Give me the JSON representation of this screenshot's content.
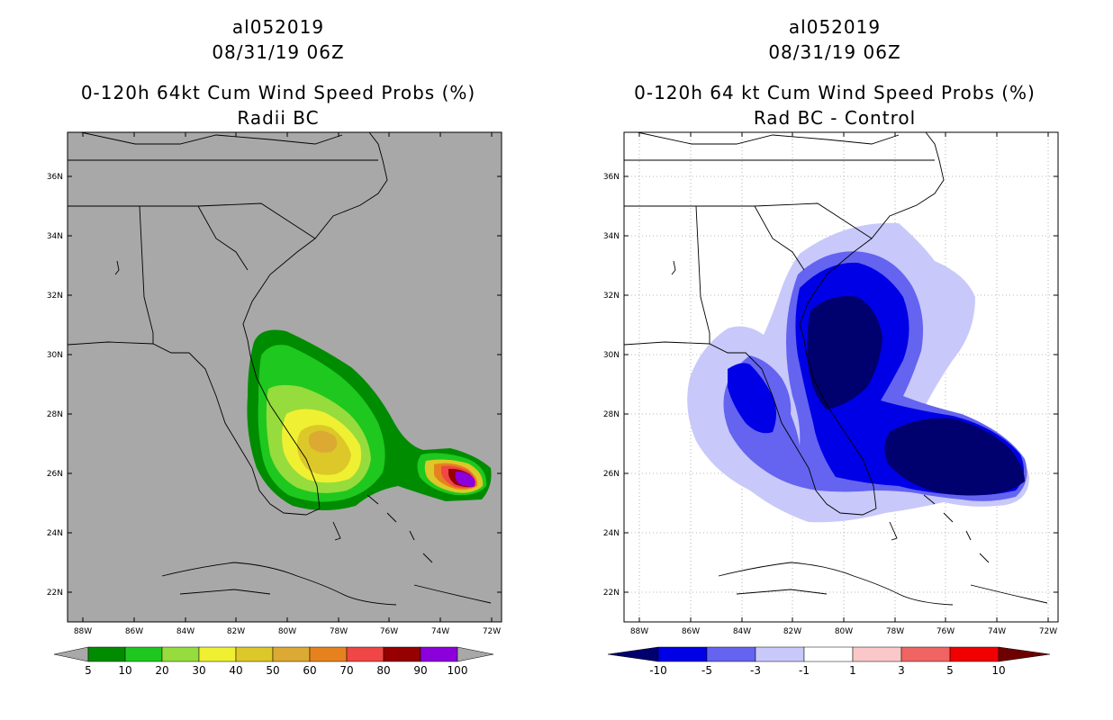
{
  "left": {
    "storm_id": "al052019",
    "datetime": "08/31/19 06Z",
    "title": "0-120h 64kt Cum Wind Speed Probs (%)",
    "subtitle": "Radii BC",
    "colorbar": {
      "labels": [
        "5",
        "10",
        "20",
        "30",
        "40",
        "50",
        "60",
        "70",
        "80",
        "90",
        "100"
      ],
      "colors": [
        "#008c00",
        "#1ec81e",
        "#96dc3c",
        "#f0f032",
        "#dcc828",
        "#dcaa32",
        "#e6821e",
        "#f04646",
        "#960000",
        "#8c00dc"
      ],
      "end_color": "#a8a8a8"
    },
    "background": "#a8a8a8"
  },
  "right": {
    "storm_id": "al052019",
    "datetime": "08/31/19 06Z",
    "title": "0-120h 64 kt Cum Wind Speed Probs (%)",
    "subtitle": "Rad BC - Control",
    "colorbar": {
      "labels": [
        "-10",
        "-5",
        "-3",
        "-1",
        "1",
        "3",
        "5",
        "10"
      ],
      "colors": [
        "#0000e6",
        "#6464f0",
        "#c8c8fa",
        "#ffffff",
        "#fac8c8",
        "#f06464",
        "#f00000"
      ],
      "low_end_color": "#00006e",
      "high_end_color": "#6e0000"
    },
    "background": "#ffffff"
  },
  "axes": {
    "lon_labels": [
      "88W",
      "86W",
      "84W",
      "82W",
      "80W",
      "78W",
      "76W",
      "74W",
      "72W"
    ],
    "lat_labels": [
      "36N",
      "34N",
      "32N",
      "30N",
      "28N",
      "26N",
      "24N",
      "22N"
    ]
  }
}
